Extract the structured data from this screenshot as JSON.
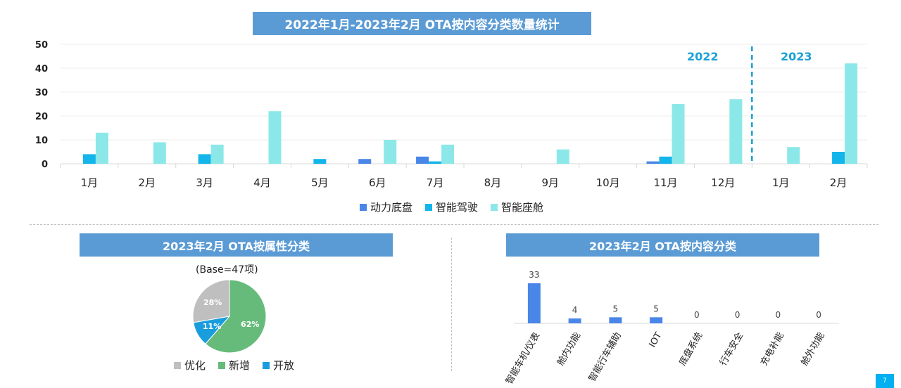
{
  "main_title": "2022年1月-2023年2月 OTA按内容分类数量统计",
  "pie_title": "2023年2月 OTA按属性分类",
  "cat_title": "2023年2月 OTA按内容分类",
  "pie_base_note": "(Base=47项)",
  "page_number": "7",
  "colors": {
    "banner": "#5b9bd5",
    "powertrain": "#4a86e8",
    "adas": "#13b5ea",
    "cockpit": "#8ce8e8",
    "year_marker": "#1aa1d6",
    "pie_optimize": "#bfbfbf",
    "pie_new": "#66bb7a",
    "pie_open": "#1a9ddd",
    "category_bar": "#4a86e8"
  },
  "chart_data": [
    {
      "type": "bar",
      "title": "2022年1月-2023年2月 OTA按内容分类数量统计",
      "categories": [
        "1月",
        "2月",
        "3月",
        "4月",
        "5月",
        "6月",
        "7月",
        "8月",
        "9月",
        "10月",
        "11月",
        "12月",
        "1月",
        "2月"
      ],
      "ylim": [
        0,
        50
      ],
      "yticks": [
        0,
        10,
        20,
        30,
        40,
        50
      ],
      "grid": true,
      "legend_position": "bottom",
      "year_labels": [
        {
          "label": "2022",
          "span_months": [
            1,
            12
          ]
        },
        {
          "label": "2023",
          "span_months": [
            13,
            14
          ]
        }
      ],
      "series": [
        {
          "name": "动力底盘",
          "values": [
            0,
            0,
            0,
            0,
            0,
            2,
            3,
            0,
            0,
            0,
            1,
            0,
            0,
            0
          ]
        },
        {
          "name": "智能驾驶",
          "values": [
            4,
            0,
            4,
            0,
            2,
            0,
            1,
            0,
            0,
            0,
            3,
            0,
            0,
            5
          ]
        },
        {
          "name": "智能座舱",
          "values": [
            13,
            9,
            8,
            22,
            0,
            10,
            8,
            0,
            6,
            0,
            25,
            27,
            7,
            42
          ]
        }
      ]
    },
    {
      "type": "pie",
      "title": "2023年2月 OTA按属性分类",
      "legend_position": "bottom",
      "slices": [
        {
          "name": "优化",
          "value": 28,
          "label": "28%"
        },
        {
          "name": "新增",
          "value": 62,
          "label": "62%"
        },
        {
          "name": "开放",
          "value": 11,
          "label": "11%"
        }
      ]
    },
    {
      "type": "bar",
      "title": "2023年2月 OTA按内容分类",
      "categories": [
        "智能车机/仪表",
        "舱内功能",
        "智能行车辅助",
        "IOT",
        "底盘系统",
        "行车安全",
        "充电补能",
        "舱外功能"
      ],
      "values": [
        33,
        4,
        5,
        5,
        0,
        0,
        0,
        0
      ]
    }
  ]
}
